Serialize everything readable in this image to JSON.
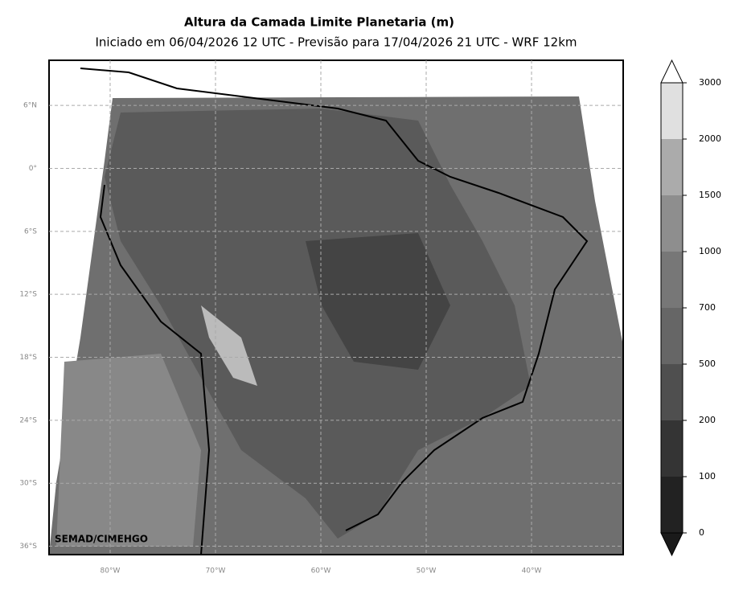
{
  "title": "Altura da Camada Limite Planetaria (m)",
  "subtitle": "Iniciado em 06/04/2026 12 UTC - Previsão para 17/04/2026 21 UTC - WRF 12km",
  "map": {
    "xlim": [
      -85.8,
      -31.3
    ],
    "ylim": [
      -36.8,
      10.3
    ],
    "grid": true,
    "yticks": [
      {
        "value": 6,
        "label": "6°N"
      },
      {
        "value": 0,
        "label": "0°"
      },
      {
        "value": -6,
        "label": "6°S"
      },
      {
        "value": -12,
        "label": "12°S"
      },
      {
        "value": -18,
        "label": "18°S"
      },
      {
        "value": -24,
        "label": "24°S"
      },
      {
        "value": -30,
        "label": "30°S"
      },
      {
        "value": -36,
        "label": "36°S"
      }
    ],
    "xticks": [
      {
        "value": -80,
        "label": "80°W"
      },
      {
        "value": -70,
        "label": "70°W"
      },
      {
        "value": -60,
        "label": "60°W"
      },
      {
        "value": -50,
        "label": "50°W"
      },
      {
        "value": -40,
        "label": "40°W"
      }
    ],
    "credit": "SEMAD/CIMEHGO"
  },
  "colorbar": {
    "levels": [
      0,
      100,
      200,
      500,
      700,
      1000,
      1500,
      2000,
      3000
    ],
    "colors": [
      "#222222",
      "#343434",
      "#4f4f4f",
      "#666666",
      "#777777",
      "#8e8e8e",
      "#ababab",
      "#e0e0e0"
    ],
    "under_color": "#1a1a1a",
    "over_color": "#ffffff"
  }
}
